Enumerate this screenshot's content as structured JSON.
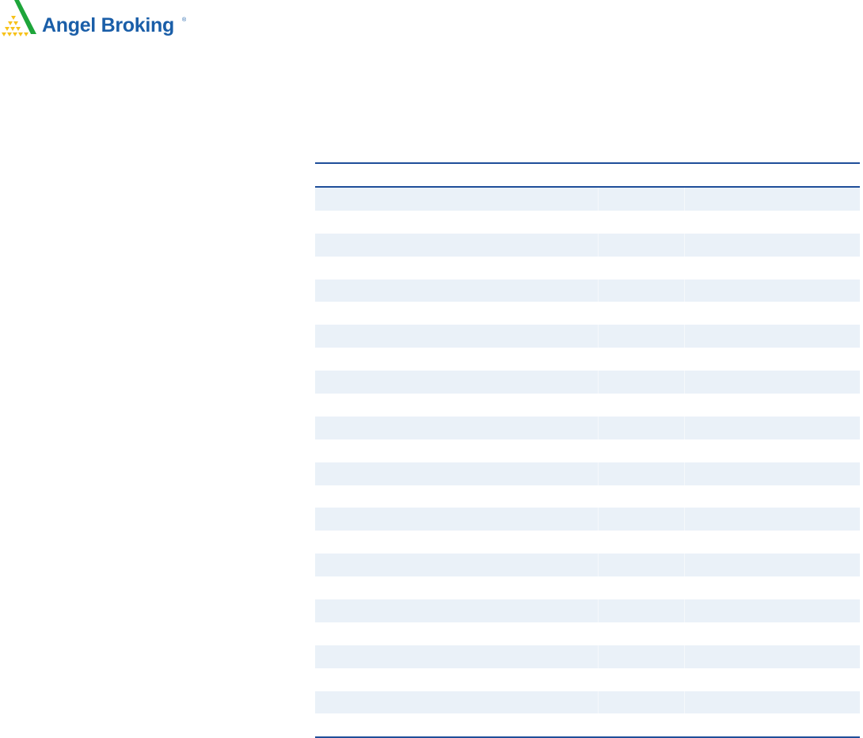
{
  "logo": {
    "text": "Angel Broking",
    "registered": "®",
    "colors": {
      "brand_blue": "#1a5ea8",
      "green": "#1ea53a",
      "yellow": "#f7c21b"
    }
  },
  "table": {
    "rule_color": "#1f4e99",
    "stripe_color": "#eaf1f8",
    "row_count": 24,
    "columns": 3
  }
}
